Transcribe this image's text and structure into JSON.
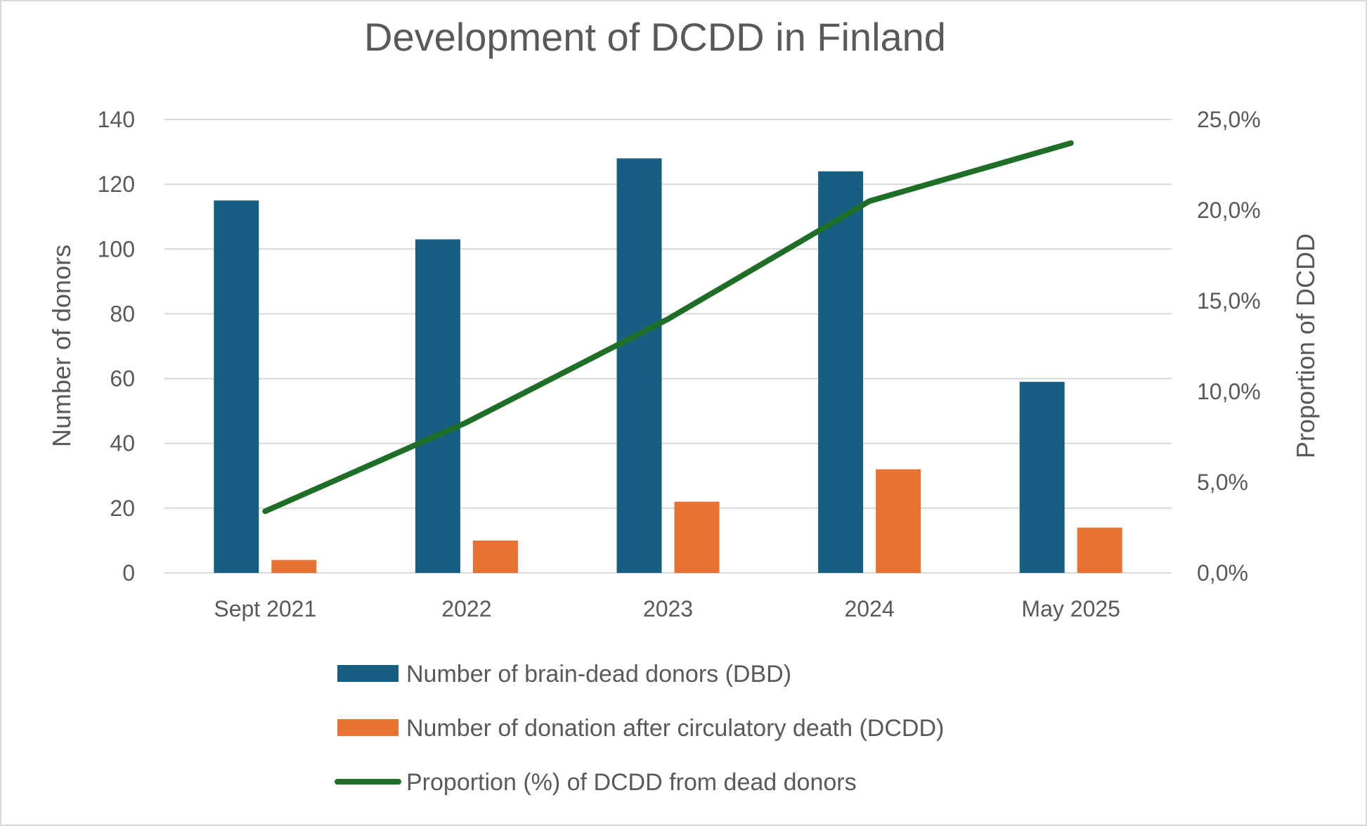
{
  "chart_data": {
    "type": "bar+line",
    "title": "Development of DCDD in Finland",
    "categories": [
      "Sept 2021",
      "2022",
      "2023",
      "2024",
      "May 2025"
    ],
    "ylabel": "Number of donors",
    "ylabel_right": "Proportion of DCDD",
    "ylim": [
      0,
      140
    ],
    "yticks": [
      0,
      20,
      40,
      60,
      80,
      100,
      120,
      140
    ],
    "ylim_right": [
      0,
      25
    ],
    "yticks_right": [
      "0,0%",
      "5,0%",
      "10,0%",
      "15,0%",
      "20,0%",
      "25,0%"
    ],
    "grid": true,
    "legend_position": "bottom",
    "series": [
      {
        "name": "Number of brain-dead donors (DBD)",
        "type": "bar",
        "axis": "left",
        "color": "#175F82",
        "values": [
          115,
          103,
          128,
          124,
          59
        ]
      },
      {
        "name": "Number of donation after circulatory death (DCDD)",
        "type": "bar",
        "axis": "left",
        "color": "#E97132",
        "values": [
          4,
          10,
          22,
          32,
          14
        ]
      },
      {
        "name": "Proportion (%) of DCDD from dead donors",
        "type": "line",
        "axis": "right",
        "color": "#1E6E28",
        "values": [
          3.4,
          8.3,
          14.0,
          20.5,
          23.7
        ]
      }
    ]
  }
}
